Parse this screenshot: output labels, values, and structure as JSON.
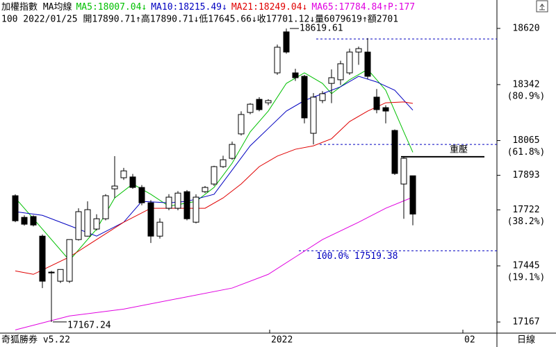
{
  "chart_data": {
    "type": "candlestick",
    "title": "加權指數 MA均線",
    "info_line": "100 2022/01/25 開17890.71↑高17890.71↓低17645.66↓收17701.12↓量6079619↑額2701",
    "extra_header": {
      "text": "P:177",
      "color": "#e000e0"
    },
    "footer_left": "奇狐勝券 v5.22",
    "footer_right": "日線",
    "xlabels": [
      "2022",
      "02"
    ],
    "ylim": [
      17112,
      18637
    ],
    "yticks": [
      18620,
      18342,
      18065,
      17893,
      17722,
      17445,
      17167
    ],
    "fib_levels": [
      {
        "value": 18342,
        "label": "(80.9%)"
      },
      {
        "value": 18065,
        "label": "(61.8%)"
      },
      {
        "value": 17722,
        "label": "(38.2%)"
      },
      {
        "value": 17445,
        "label": "(19.1%)"
      }
    ],
    "candles": {
      "open": [
        17792,
        17685,
        17689,
        17592,
        17414,
        17369,
        17369,
        17575,
        17592,
        17627,
        17678,
        17826,
        17881,
        17885,
        17833,
        17757,
        17592,
        17730,
        17730,
        17812,
        17661,
        17812,
        17850,
        17936,
        17977,
        18098,
        18204,
        18269,
        18252,
        18400,
        18603,
        18400,
        18383,
        18101,
        18263,
        18348,
        18366,
        18400,
        18503,
        18503,
        18280,
        18228,
        18115,
        17850,
        17890.71
      ],
      "high": [
        17799,
        17695,
        17695,
        17600,
        17420,
        17400,
        17440,
        17730,
        17764,
        17700,
        17800,
        17988,
        17930,
        17900,
        17845,
        17770,
        17680,
        17800,
        17815,
        17820,
        17799,
        17840,
        17940,
        17990,
        18060,
        18210,
        18250,
        18280,
        18270,
        18540,
        18619.61,
        18420,
        18390,
        18300,
        18310,
        18417,
        18460,
        18520,
        18530,
        18572,
        18320,
        18240,
        18120,
        17985,
        17890.71
      ],
      "low": [
        17661,
        17644,
        17640,
        17335,
        17167.24,
        17360,
        17360,
        17570,
        17590,
        17620,
        17670,
        17781,
        17870,
        17826,
        17745,
        17558,
        17580,
        17720,
        17720,
        17670,
        17655,
        17805,
        17840,
        17930,
        17970,
        18090,
        18195,
        18210,
        18240,
        18390,
        18495,
        18360,
        18150,
        18046,
        18250,
        18250,
        18340,
        18390,
        18440,
        18370,
        18200,
        18150,
        17895,
        17678,
        17645.66
      ],
      "close": [
        17668,
        17651,
        17647,
        17369,
        17410,
        17427,
        17575,
        17713,
        17723,
        17678,
        17792,
        17840,
        17915,
        17833,
        17757,
        17592,
        17661,
        17785,
        17805,
        17678,
        17785,
        17833,
        17936,
        17970,
        18046,
        18194,
        18245,
        18218,
        18263,
        18527,
        18503,
        18376,
        18177,
        18280,
        18297,
        18376,
        18445,
        18503,
        18520,
        18383,
        18218,
        18211,
        17902,
        17977,
        17701.12
      ]
    },
    "up_color": "#ffffff",
    "down_color": "#000000",
    "series": [
      {
        "label": "MA5:18007.04↓",
        "color": "#00c000",
        "x": [
          0,
          3,
          6,
          9,
          11,
          13,
          15,
          17,
          20,
          22,
          24,
          26,
          28,
          30,
          32,
          34,
          35,
          37,
          39,
          40,
          41,
          42,
          43,
          44
        ],
        "values": [
          17781,
          17627,
          17472,
          17627,
          17781,
          17850,
          17799,
          17740,
          17764,
          17833,
          17953,
          18108,
          18211,
          18348,
          18400,
          18348,
          18297,
          18366,
          18417,
          18366,
          18314,
          18211,
          18108,
          18007.04
        ]
      },
      {
        "label": "MA10:18215.49↓",
        "color": "#0000c0",
        "x": [
          0,
          3,
          6,
          9,
          12,
          14,
          17,
          19,
          22,
          24,
          26,
          28,
          30,
          32,
          34,
          36,
          38,
          40,
          42,
          44
        ],
        "values": [
          17713,
          17695,
          17644,
          17592,
          17661,
          17764,
          17757,
          17764,
          17799,
          17919,
          18039,
          18125,
          18211,
          18263,
          18297,
          18331,
          18383,
          18355,
          18314,
          18215.49
        ]
      },
      {
        "label": "MA21:18249.04↓",
        "color": "#e00000",
        "x": [
          0,
          2,
          6,
          9,
          12,
          15,
          18,
          21,
          23,
          25,
          27,
          29,
          31,
          33,
          35,
          37,
          39,
          41,
          43,
          44
        ],
        "values": [
          17420,
          17403,
          17489,
          17575,
          17661,
          17730,
          17730,
          17730,
          17781,
          17850,
          17936,
          17988,
          18022,
          18039,
          18074,
          18159,
          18211,
          18252,
          18256,
          18249.04
        ]
      },
      {
        "label": "MA65:17784.84↑",
        "color": "#e000e0",
        "x": [
          0,
          6,
          12,
          18,
          24,
          28,
          31,
          34,
          38,
          41,
          44
        ],
        "values": [
          17128,
          17197,
          17231,
          17283,
          17335,
          17403,
          17489,
          17575,
          17661,
          17730,
          17784.84
        ]
      }
    ],
    "levels": [
      {
        "value": 18568
      },
      {
        "value": 18046
      },
      {
        "value": 17519.38,
        "label": "100.0% 17519.38"
      }
    ],
    "high_label": "18619.61",
    "low_label": "17167.24",
    "resistance": {
      "label": "重壓",
      "value": 17985
    }
  }
}
